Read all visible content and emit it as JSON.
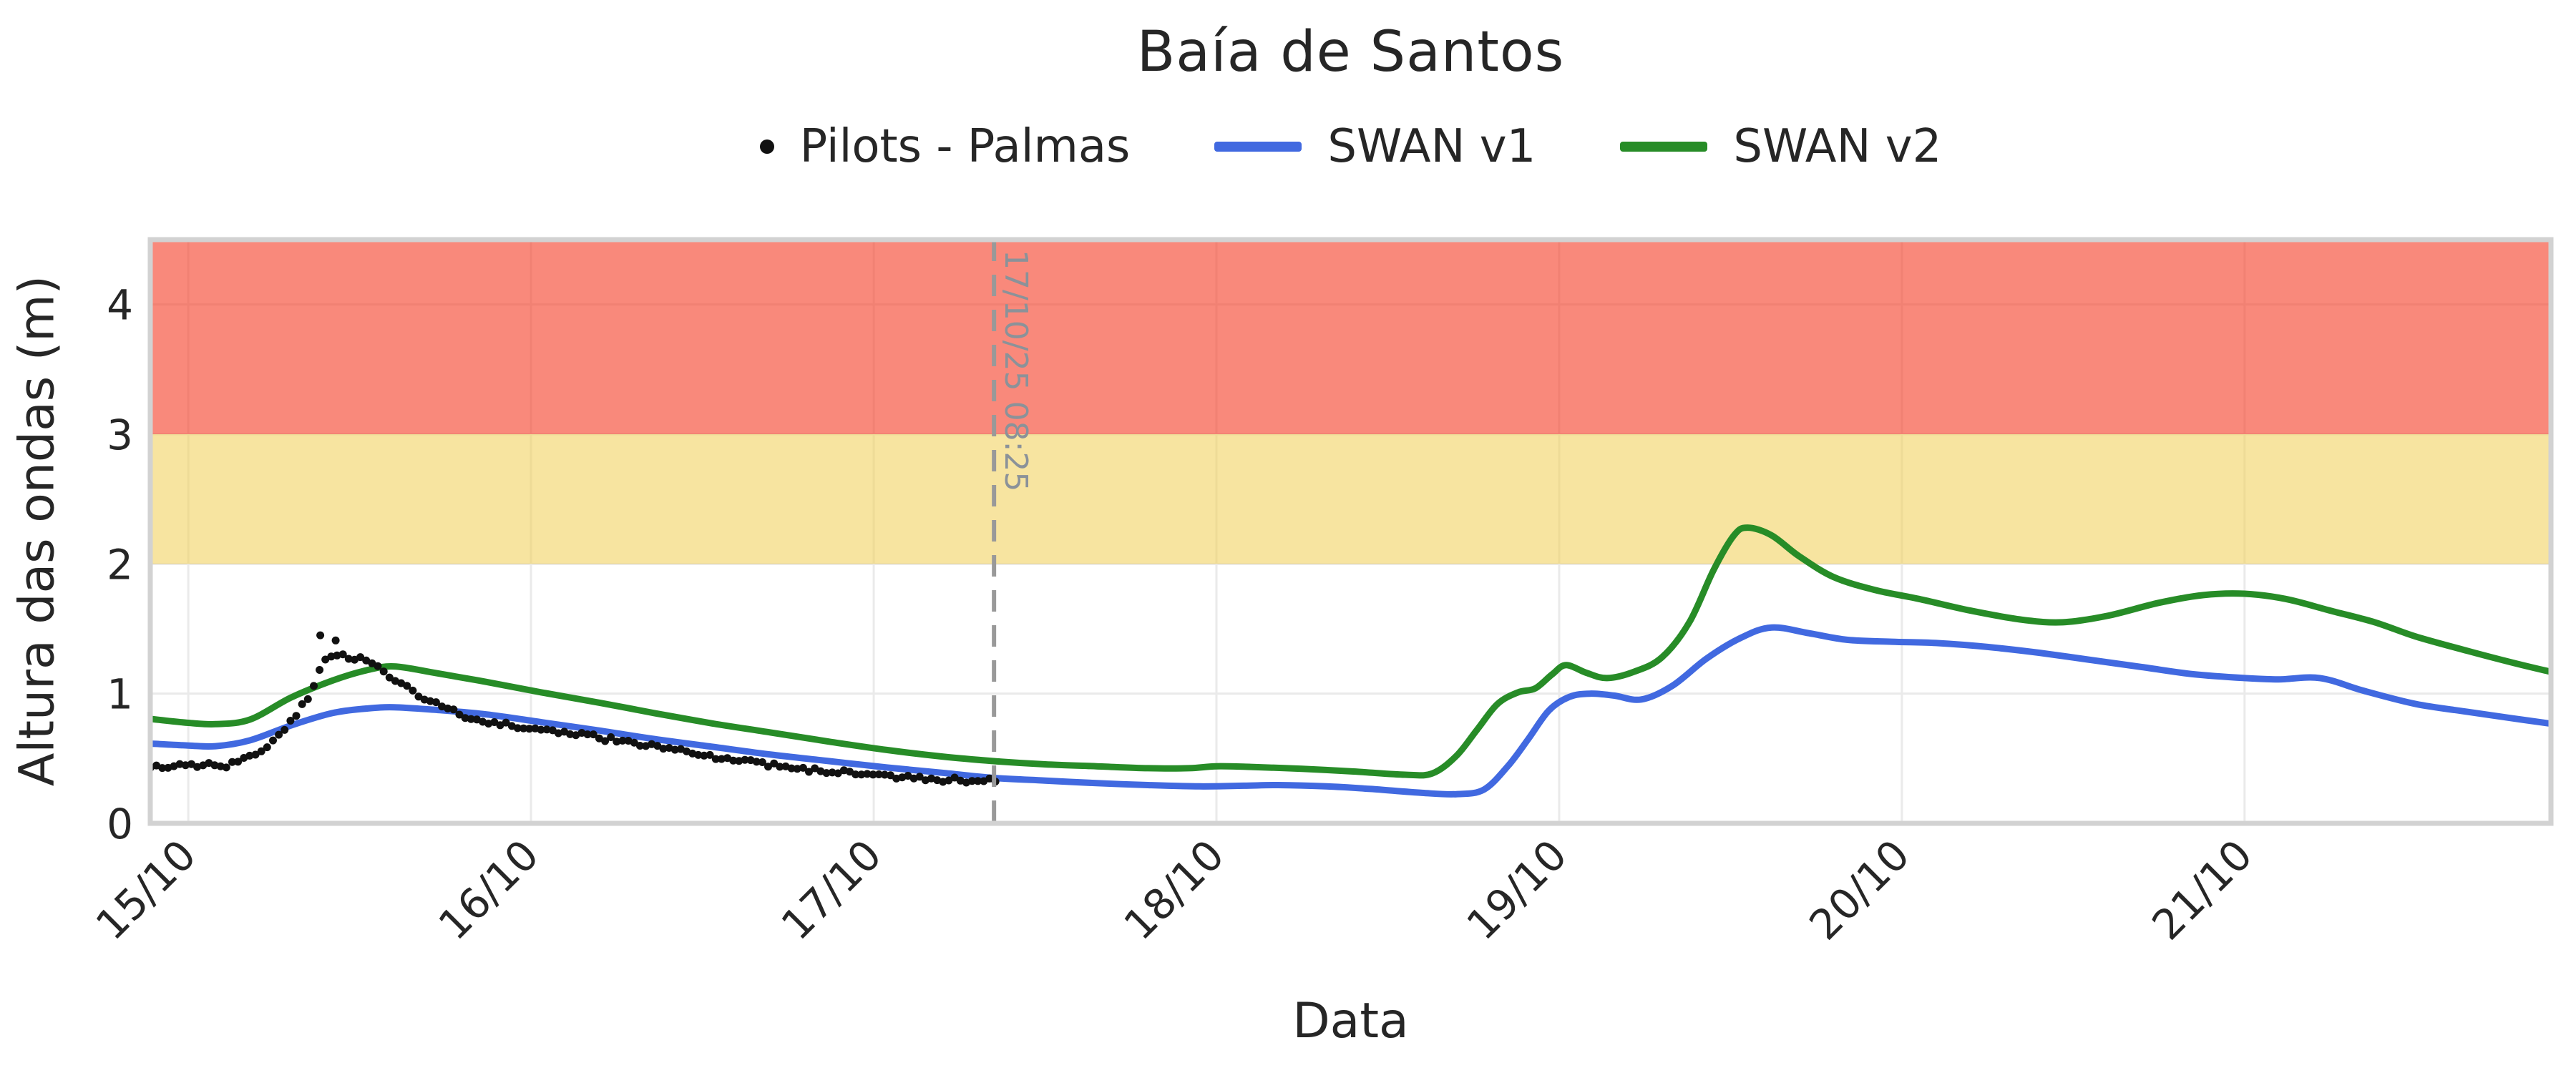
{
  "chart_data": {
    "type": "line",
    "title": "Baía de Santos",
    "xlabel": "Data",
    "ylabel": "Altura das ondas (m)",
    "x_unit": "days since 15/10 00:00",
    "xlim_days": [
      -0.111,
      6.894
    ],
    "ylim": [
      0,
      4.5
    ],
    "grid": true,
    "legend_position": "top-center",
    "x_ticks": [
      {
        "day": 0,
        "label": "15/10"
      },
      {
        "day": 1,
        "label": "16/10"
      },
      {
        "day": 2,
        "label": "17/10"
      },
      {
        "day": 3,
        "label": "18/10"
      },
      {
        "day": 4,
        "label": "19/10"
      },
      {
        "day": 5,
        "label": "20/10"
      },
      {
        "day": 6,
        "label": "21/10"
      }
    ],
    "y_ticks": [
      {
        "value": 0,
        "label": "0"
      },
      {
        "value": 1,
        "label": "1"
      },
      {
        "value": 2,
        "label": "2"
      },
      {
        "value": 3,
        "label": "3"
      },
      {
        "value": 4,
        "label": "4"
      }
    ],
    "bands": [
      {
        "name": "alert-red",
        "from": 3.0,
        "to": 4.5,
        "color": "rgba(245,65,42,0.62)"
      },
      {
        "name": "alert-yellow",
        "from": 2.0,
        "to": 3.0,
        "color": "rgba(240,206,82,0.55)"
      }
    ],
    "annotation": {
      "day": 2.351,
      "label": "17/10/25 08:25",
      "color": "#8b9299",
      "line_color": "#999999"
    },
    "series": [
      {
        "name": "Pilots - Palmas",
        "type": "scatter",
        "color": "#111111",
        "marker_radius": 5.5,
        "sample_interval_days": 0.017,
        "jitter": 0.02,
        "points": [
          [
            -0.11,
            0.45
          ],
          [
            -0.06,
            0.43
          ],
          [
            0.0,
            0.445
          ],
          [
            0.05,
            0.46
          ],
          [
            0.09,
            0.44
          ],
          [
            0.13,
            0.46
          ],
          [
            0.17,
            0.5
          ],
          [
            0.21,
            0.545
          ],
          [
            0.25,
            0.63
          ],
          [
            0.29,
            0.75
          ],
          [
            0.32,
            0.85
          ],
          [
            0.35,
            0.98
          ],
          [
            0.375,
            1.13
          ],
          [
            0.39,
            1.24
          ],
          [
            0.41,
            1.3
          ],
          [
            0.43,
            1.27
          ],
          [
            0.45,
            1.3
          ],
          [
            0.47,
            1.26
          ],
          [
            0.49,
            1.28
          ],
          [
            0.52,
            1.24
          ],
          [
            0.55,
            1.2
          ],
          [
            0.58,
            1.15
          ],
          [
            0.61,
            1.1
          ],
          [
            0.64,
            1.05
          ],
          [
            0.67,
            1.0
          ],
          [
            0.7,
            0.955
          ],
          [
            0.74,
            0.9
          ],
          [
            0.78,
            0.855
          ],
          [
            0.82,
            0.82
          ],
          [
            0.86,
            0.79
          ],
          [
            0.9,
            0.77
          ],
          [
            0.95,
            0.755
          ],
          [
            1.0,
            0.74
          ],
          [
            1.05,
            0.72
          ],
          [
            1.1,
            0.7
          ],
          [
            1.15,
            0.68
          ],
          [
            1.2,
            0.66
          ],
          [
            1.25,
            0.64
          ],
          [
            1.3,
            0.62
          ],
          [
            1.35,
            0.6
          ],
          [
            1.4,
            0.575
          ],
          [
            1.45,
            0.55
          ],
          [
            1.5,
            0.53
          ],
          [
            1.55,
            0.51
          ],
          [
            1.6,
            0.49
          ],
          [
            1.65,
            0.47
          ],
          [
            1.7,
            0.45
          ],
          [
            1.75,
            0.435
          ],
          [
            1.8,
            0.42
          ],
          [
            1.85,
            0.405
          ],
          [
            1.9,
            0.395
          ],
          [
            1.95,
            0.385
          ],
          [
            2.0,
            0.375
          ],
          [
            2.05,
            0.365
          ],
          [
            2.1,
            0.355
          ],
          [
            2.15,
            0.345
          ],
          [
            2.2,
            0.34
          ],
          [
            2.25,
            0.335
          ],
          [
            2.3,
            0.33
          ],
          [
            2.36,
            0.325
          ]
        ],
        "outliers": [
          [
            0.385,
            1.45
          ],
          [
            0.43,
            1.41
          ]
        ]
      },
      {
        "name": "SWAN v1",
        "type": "line",
        "color": "#4169E0",
        "line_width": 9,
        "points": [
          [
            -0.11,
            0.615
          ],
          [
            0.0,
            0.6
          ],
          [
            0.08,
            0.595
          ],
          [
            0.18,
            0.64
          ],
          [
            0.3,
            0.755
          ],
          [
            0.42,
            0.85
          ],
          [
            0.52,
            0.885
          ],
          [
            0.6,
            0.895
          ],
          [
            0.72,
            0.875
          ],
          [
            0.87,
            0.84
          ],
          [
            1.03,
            0.78
          ],
          [
            1.2,
            0.715
          ],
          [
            1.36,
            0.65
          ],
          [
            1.53,
            0.59
          ],
          [
            1.7,
            0.53
          ],
          [
            1.87,
            0.48
          ],
          [
            2.04,
            0.43
          ],
          [
            2.2,
            0.39
          ],
          [
            2.35,
            0.35
          ],
          [
            2.5,
            0.33
          ],
          [
            2.65,
            0.31
          ],
          [
            2.8,
            0.295
          ],
          [
            2.95,
            0.285
          ],
          [
            3.08,
            0.29
          ],
          [
            3.18,
            0.295
          ],
          [
            3.32,
            0.285
          ],
          [
            3.45,
            0.265
          ],
          [
            3.6,
            0.235
          ],
          [
            3.7,
            0.225
          ],
          [
            3.78,
            0.26
          ],
          [
            3.85,
            0.44
          ],
          [
            3.91,
            0.65
          ],
          [
            3.97,
            0.87
          ],
          [
            4.03,
            0.975
          ],
          [
            4.09,
            1.0
          ],
          [
            4.16,
            0.985
          ],
          [
            4.24,
            0.955
          ],
          [
            4.33,
            1.06
          ],
          [
            4.43,
            1.27
          ],
          [
            4.53,
            1.43
          ],
          [
            4.62,
            1.51
          ],
          [
            4.73,
            1.465
          ],
          [
            4.84,
            1.415
          ],
          [
            4.97,
            1.4
          ],
          [
            5.1,
            1.39
          ],
          [
            5.25,
            1.36
          ],
          [
            5.4,
            1.315
          ],
          [
            5.55,
            1.26
          ],
          [
            5.7,
            1.205
          ],
          [
            5.85,
            1.15
          ],
          [
            6.0,
            1.12
          ],
          [
            6.1,
            1.11
          ],
          [
            6.22,
            1.12
          ],
          [
            6.35,
            1.02
          ],
          [
            6.5,
            0.92
          ],
          [
            6.65,
            0.86
          ],
          [
            6.78,
            0.81
          ],
          [
            6.89,
            0.77
          ]
        ]
      },
      {
        "name": "SWAN v2",
        "type": "line",
        "color": "#278C27",
        "line_width": 9,
        "points": [
          [
            -0.11,
            0.805
          ],
          [
            0.0,
            0.775
          ],
          [
            0.08,
            0.765
          ],
          [
            0.18,
            0.8
          ],
          [
            0.3,
            0.97
          ],
          [
            0.42,
            1.1
          ],
          [
            0.52,
            1.18
          ],
          [
            0.6,
            1.21
          ],
          [
            0.72,
            1.16
          ],
          [
            0.87,
            1.09
          ],
          [
            1.03,
            1.01
          ],
          [
            1.2,
            0.93
          ],
          [
            1.36,
            0.85
          ],
          [
            1.53,
            0.77
          ],
          [
            1.7,
            0.7
          ],
          [
            1.87,
            0.63
          ],
          [
            2.04,
            0.565
          ],
          [
            2.2,
            0.515
          ],
          [
            2.35,
            0.48
          ],
          [
            2.5,
            0.455
          ],
          [
            2.65,
            0.44
          ],
          [
            2.8,
            0.425
          ],
          [
            2.92,
            0.425
          ],
          [
            3.0,
            0.44
          ],
          [
            3.1,
            0.435
          ],
          [
            3.25,
            0.42
          ],
          [
            3.4,
            0.4
          ],
          [
            3.55,
            0.375
          ],
          [
            3.63,
            0.385
          ],
          [
            3.7,
            0.52
          ],
          [
            3.76,
            0.72
          ],
          [
            3.82,
            0.92
          ],
          [
            3.88,
            1.01
          ],
          [
            3.93,
            1.04
          ],
          [
            3.98,
            1.15
          ],
          [
            4.02,
            1.22
          ],
          [
            4.08,
            1.16
          ],
          [
            4.14,
            1.12
          ],
          [
            4.22,
            1.17
          ],
          [
            4.3,
            1.28
          ],
          [
            4.38,
            1.55
          ],
          [
            4.45,
            1.95
          ],
          [
            4.51,
            2.22
          ],
          [
            4.55,
            2.28
          ],
          [
            4.62,
            2.22
          ],
          [
            4.7,
            2.06
          ],
          [
            4.8,
            1.9
          ],
          [
            4.92,
            1.8
          ],
          [
            5.05,
            1.73
          ],
          [
            5.2,
            1.64
          ],
          [
            5.35,
            1.57
          ],
          [
            5.47,
            1.55
          ],
          [
            5.6,
            1.6
          ],
          [
            5.75,
            1.7
          ],
          [
            5.88,
            1.76
          ],
          [
            6.0,
            1.77
          ],
          [
            6.12,
            1.73
          ],
          [
            6.25,
            1.64
          ],
          [
            6.38,
            1.55
          ],
          [
            6.5,
            1.44
          ],
          [
            6.65,
            1.33
          ],
          [
            6.78,
            1.24
          ],
          [
            6.89,
            1.17
          ]
        ]
      }
    ],
    "colors": {
      "grid": "#eaeaea",
      "plot_border": "#d2d2d2",
      "background": "#ffffff",
      "text": "#262626"
    }
  }
}
